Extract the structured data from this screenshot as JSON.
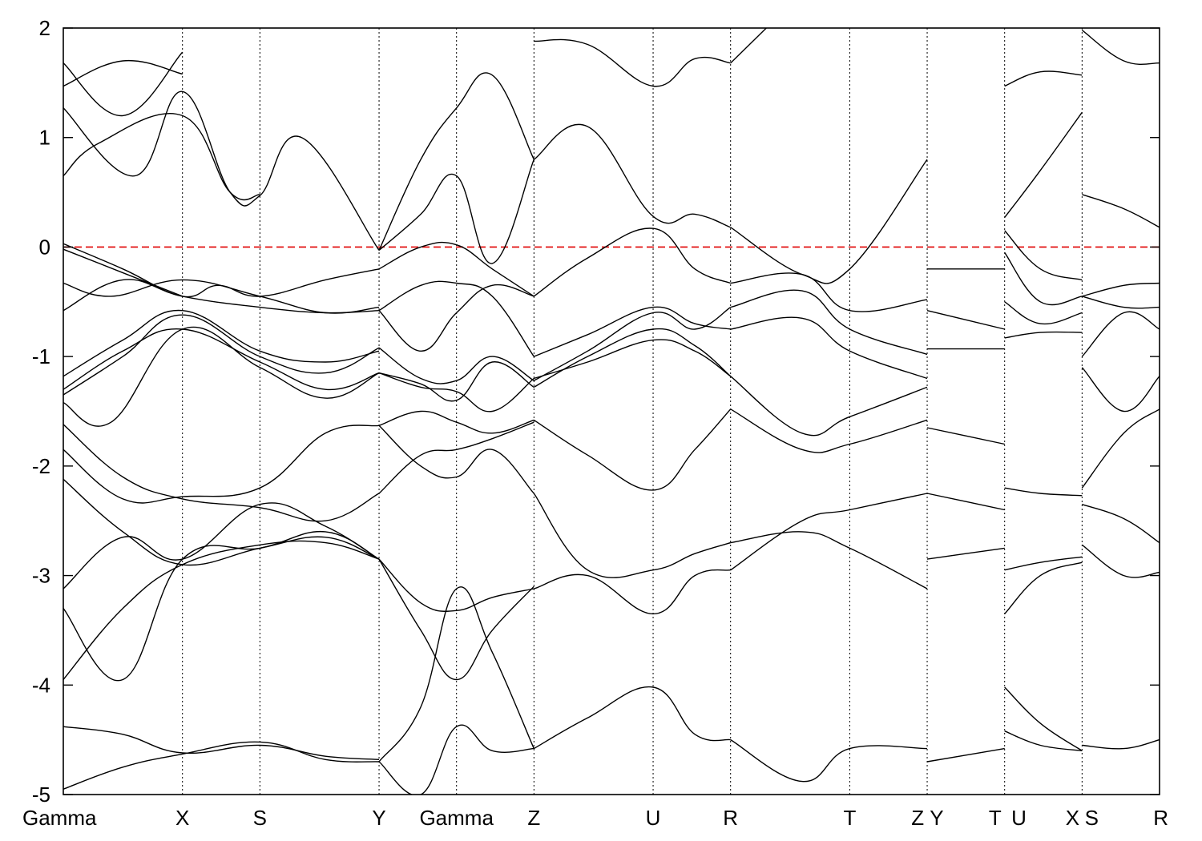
{
  "chart_data": {
    "type": "line",
    "title": "",
    "xlabel": "",
    "ylabel": "",
    "ylim": [
      -5,
      2
    ],
    "yticks": [
      -5,
      -4,
      -3,
      -2,
      -1,
      0,
      1,
      2
    ],
    "grid": false,
    "legend": "none",
    "fermi_level": 0,
    "colors": {
      "bands": "#000000",
      "fermi": "#e00000",
      "kpath_lines": "#000000"
    },
    "kpoints": [
      {
        "label": "Gamma",
        "x": 0.0
      },
      {
        "label": "X",
        "x": 1.0
      },
      {
        "label": "S",
        "x": 1.65
      },
      {
        "label": "Y",
        "x": 2.65
      },
      {
        "label": "Gamma",
        "x": 3.3
      },
      {
        "label": "Z",
        "x": 3.95
      },
      {
        "label": "U",
        "x": 4.95
      },
      {
        "label": "R",
        "x": 5.6
      },
      {
        "label": "T",
        "x": 6.6
      },
      {
        "label": "Z",
        "x": 7.25
      },
      {
        "label": "Y",
        "x": 7.25
      },
      {
        "label": "T",
        "x": 7.9
      },
      {
        "label": "U",
        "x": 7.9
      },
      {
        "label": "X",
        "x": 8.55
      },
      {
        "label": "S",
        "x": 8.55
      },
      {
        "label": "R",
        "x": 9.2
      }
    ],
    "tick_labels": [
      {
        "label": "Gamma",
        "x": 0.0
      },
      {
        "label": "X",
        "x": 1.0
      },
      {
        "label": "S",
        "x": 1.65
      },
      {
        "label": "Y",
        "x": 2.65
      },
      {
        "label": "Gamma",
        "x": 3.3
      },
      {
        "label": "Z",
        "x": 3.95
      },
      {
        "label": "U",
        "x": 4.95
      },
      {
        "label": "R",
        "x": 5.6
      },
      {
        "label": "T",
        "x": 6.6
      },
      {
        "label": "Z",
        "x": 7.17
      },
      {
        "label": "Y",
        "x": 7.33
      },
      {
        "label": "T",
        "x": 7.82
      },
      {
        "label": "U",
        "x": 8.02
      },
      {
        "label": "X",
        "x": 8.47
      },
      {
        "label": "S",
        "x": 8.63
      },
      {
        "label": "R",
        "x": 9.2
      }
    ],
    "vertical_lines": [
      1.0,
      1.65,
      2.65,
      3.3,
      3.95,
      4.95,
      5.6,
      6.6,
      7.25,
      7.9,
      8.55
    ],
    "xlim": [
      0,
      9.2
    ],
    "series": [
      {
        "x": [
          0,
          1.0
        ],
        "y": [
          -0.02,
          -0.45
        ]
      },
      {
        "x": [
          0,
          0.5,
          1.0,
          1.3,
          1.65,
          2.2,
          2.65
        ],
        "y": [
          0.03,
          -0.2,
          -0.45,
          -0.35,
          -0.45,
          -0.3,
          -0.2
        ]
      },
      {
        "x": [
          2.65,
          3.0,
          3.3,
          3.6,
          3.95
        ],
        "y": [
          -0.2,
          0.0,
          0.02,
          -0.2,
          -0.45
        ]
      },
      {
        "x": [
          3.95,
          4.4,
          4.95,
          5.3,
          5.6
        ],
        "y": [
          -0.45,
          -0.1,
          0.17,
          -0.2,
          -0.33
        ]
      },
      {
        "x": [
          5.6,
          6.2,
          6.6,
          7.25
        ],
        "y": [
          -0.33,
          -0.25,
          -0.58,
          -0.48
        ]
      },
      {
        "x": [
          0,
          0.4,
          1.0,
          1.65,
          2.2,
          2.65
        ],
        "y": [
          -0.33,
          -0.45,
          -0.3,
          -0.45,
          -0.6,
          -0.55
        ]
      },
      {
        "x": [
          0,
          0.5,
          1.0,
          1.65,
          2.2,
          2.65
        ],
        "y": [
          -0.58,
          -0.3,
          -0.45,
          -0.55,
          -0.6,
          -0.58
        ]
      },
      {
        "x": [
          2.65,
          3.0,
          3.3,
          3.6,
          3.95
        ],
        "y": [
          -0.58,
          -0.95,
          -0.6,
          -0.35,
          -0.45
        ]
      },
      {
        "x": [
          2.65,
          3.0,
          3.3,
          3.6,
          3.95
        ],
        "y": [
          -0.58,
          -0.35,
          -0.33,
          -0.45,
          -1.0
        ]
      },
      {
        "x": [
          0,
          0.5,
          1.0,
          1.65,
          2.2,
          2.65
        ],
        "y": [
          -1.18,
          -0.85,
          -0.58,
          -0.95,
          -1.05,
          -0.95
        ]
      },
      {
        "x": [
          0,
          0.5,
          1.0,
          1.65,
          2.2,
          2.65
        ],
        "y": [
          -1.3,
          -0.95,
          -0.75,
          -1.05,
          -1.3,
          -1.15
        ]
      },
      {
        "x": [
          0,
          0.4,
          1.0,
          1.65,
          2.2,
          2.65
        ],
        "y": [
          -1.42,
          -1.6,
          -0.75,
          -1.1,
          -1.38,
          -1.15
        ]
      },
      {
        "x": [
          0,
          0.5,
          1.0,
          1.65,
          2.2,
          2.65
        ],
        "y": [
          -1.35,
          -1.0,
          -0.62,
          -1.0,
          -1.15,
          -0.92
        ]
      },
      {
        "x": [
          2.65,
          3.0,
          3.3,
          3.6,
          3.95
        ],
        "y": [
          -0.92,
          -1.2,
          -1.22,
          -1.0,
          -1.22
        ]
      },
      {
        "x": [
          2.65,
          3.0,
          3.3,
          3.6,
          3.95
        ],
        "y": [
          -1.15,
          -1.28,
          -1.32,
          -1.5,
          -1.2
        ]
      },
      {
        "x": [
          2.65,
          3.0,
          3.3,
          3.6,
          3.95
        ],
        "y": [
          -1.15,
          -1.25,
          -1.4,
          -1.05,
          -1.28
        ]
      },
      {
        "x": [
          3.95,
          4.4,
          4.95,
          5.3,
          5.6
        ],
        "y": [
          -1.0,
          -0.8,
          -0.55,
          -0.7,
          -0.75
        ]
      },
      {
        "x": [
          3.95,
          4.4,
          4.95,
          5.3,
          5.6
        ],
        "y": [
          -1.22,
          -0.95,
          -0.6,
          -0.75,
          -0.55
        ]
      },
      {
        "x": [
          3.95,
          4.4,
          4.95,
          5.3,
          5.6
        ],
        "y": [
          -1.28,
          -1.0,
          -0.75,
          -0.9,
          -1.18
        ]
      },
      {
        "x": [
          3.95,
          4.4,
          4.95,
          5.3,
          5.6
        ],
        "y": [
          -1.2,
          -1.05,
          -0.85,
          -0.95,
          -1.18
        ]
      },
      {
        "x": [
          5.6,
          6.2,
          6.6,
          7.25
        ],
        "y": [
          -0.55,
          -0.4,
          -0.75,
          -0.98
        ]
      },
      {
        "x": [
          5.6,
          6.2,
          6.6,
          7.25
        ],
        "y": [
          -0.75,
          -0.65,
          -0.95,
          -1.2
        ]
      },
      {
        "x": [
          5.6,
          6.2,
          6.6,
          7.25
        ],
        "y": [
          -1.18,
          -1.7,
          -1.55,
          -1.28
        ]
      },
      {
        "x": [
          0,
          0.5,
          1.0,
          1.65,
          2.2,
          2.65
        ],
        "y": [
          -1.85,
          -2.3,
          -2.28,
          -2.2,
          -1.7,
          -1.63
        ]
      },
      {
        "x": [
          0,
          0.5,
          1.0,
          1.65,
          2.2,
          2.65
        ],
        "y": [
          -1.62,
          -2.1,
          -2.3,
          -2.38,
          -2.5,
          -2.25
        ]
      },
      {
        "x": [
          2.65,
          3.0,
          3.3,
          3.6,
          3.95
        ],
        "y": [
          -1.63,
          -2.0,
          -2.1,
          -1.85,
          -2.25
        ]
      },
      {
        "x": [
          2.65,
          3.0,
          3.3,
          3.6,
          3.95
        ],
        "y": [
          -2.25,
          -1.9,
          -1.85,
          -1.75,
          -1.6
        ]
      },
      {
        "x": [
          2.65,
          3.0,
          3.3,
          3.6,
          3.95
        ],
        "y": [
          -1.63,
          -1.5,
          -1.6,
          -1.7,
          -1.58
        ]
      },
      {
        "x": [
          3.95,
          4.4,
          4.95,
          5.3,
          5.6
        ],
        "y": [
          -1.58,
          -1.9,
          -2.22,
          -1.85,
          -1.48
        ]
      },
      {
        "x": [
          3.95,
          4.4,
          4.95,
          5.3,
          5.6
        ],
        "y": [
          -2.25,
          -2.95,
          -2.95,
          -2.8,
          -2.7
        ]
      },
      {
        "x": [
          5.6,
          6.2,
          6.6,
          7.25
        ],
        "y": [
          -1.48,
          -1.85,
          -1.8,
          -1.58
        ]
      },
      {
        "x": [
          0,
          0.5,
          1.0,
          1.65,
          2.2,
          2.65
        ],
        "y": [
          -2.12,
          -2.6,
          -2.9,
          -2.75,
          -2.65,
          -2.85
        ]
      },
      {
        "x": [
          0,
          0.5,
          1.0,
          1.65,
          2.2,
          2.65
        ],
        "y": [
          -3.12,
          -2.65,
          -2.85,
          -2.35,
          -2.55,
          -2.85
        ]
      },
      {
        "x": [
          2.65,
          3.0,
          3.3,
          3.6,
          3.95
        ],
        "y": [
          -2.85,
          -3.25,
          -3.32,
          -3.2,
          -3.12
        ]
      },
      {
        "x": [
          2.65,
          3.0,
          3.3,
          3.6,
          3.95
        ],
        "y": [
          -2.85,
          -3.5,
          -3.95,
          -3.5,
          -3.1
        ]
      },
      {
        "x": [
          3.95,
          4.4,
          4.95,
          5.3,
          5.6
        ],
        "y": [
          -3.12,
          -3.0,
          -3.35,
          -3.0,
          -2.95
        ]
      },
      {
        "x": [
          5.6,
          6.2,
          6.6,
          7.25
        ],
        "y": [
          -2.95,
          -2.5,
          -2.4,
          -2.25
        ]
      },
      {
        "x": [
          5.6,
          6.2,
          6.6,
          7.25
        ],
        "y": [
          -2.7,
          -2.6,
          -2.75,
          -3.12
        ]
      },
      {
        "x": [
          0,
          0.5,
          1.0,
          1.65,
          2.2,
          2.65
        ],
        "y": [
          -3.3,
          -3.95,
          -2.85,
          -2.75,
          -2.6,
          -2.85
        ]
      },
      {
        "x": [
          0,
          0.5,
          1.0,
          1.65,
          2.2,
          2.65
        ],
        "y": [
          -3.95,
          -3.3,
          -2.9,
          -2.72,
          -2.7,
          -2.85
        ]
      },
      {
        "x": [
          0,
          0.5,
          1.0,
          1.65,
          2.2,
          2.65
        ],
        "y": [
          -4.38,
          -4.45,
          -4.62,
          -4.55,
          -4.65,
          -4.68
        ]
      },
      {
        "x": [
          0,
          0.5,
          1.0,
          1.65,
          2.2,
          2.65
        ],
        "y": [
          -4.95,
          -4.75,
          -4.63,
          -4.52,
          -4.68,
          -4.7
        ]
      },
      {
        "x": [
          2.65,
          3.0,
          3.3,
          3.6,
          3.95
        ],
        "y": [
          -4.7,
          -4.2,
          -3.12,
          -3.7,
          -4.58
        ]
      },
      {
        "x": [
          2.65,
          3.0,
          3.3,
          3.6,
          3.95
        ],
        "y": [
          -4.7,
          -5.0,
          -4.38,
          -4.6,
          -4.58
        ]
      },
      {
        "x": [
          3.95,
          4.4,
          4.95,
          5.3,
          5.6
        ],
        "y": [
          -4.58,
          -4.3,
          -4.02,
          -4.45,
          -4.5
        ]
      },
      {
        "x": [
          5.6,
          6.2,
          6.6,
          7.25
        ],
        "y": [
          -4.5,
          -4.88,
          -4.58,
          -4.58
        ]
      },
      {
        "x": [
          0,
          0.3,
          1.0,
          1.4,
          1.65
        ],
        "y": [
          0.65,
          0.95,
          1.2,
          0.5,
          0.48
        ]
      },
      {
        "x": [
          0,
          0.6,
          1.0,
          1.4,
          1.65,
          2.0,
          2.65
        ],
        "y": [
          1.27,
          0.65,
          1.42,
          0.5,
          0.47,
          1.0,
          -0.03
        ]
      },
      {
        "x": [
          0,
          0.5,
          1.0
        ],
        "y": [
          1.47,
          1.7,
          1.58
        ]
      },
      {
        "x": [
          0,
          0.5,
          1.0
        ],
        "y": [
          1.68,
          1.2,
          1.78
        ]
      },
      {
        "x": [
          2.65,
          3.0,
          3.3,
          3.6,
          3.95
        ],
        "y": [
          -0.03,
          0.8,
          1.27,
          1.57,
          0.8
        ]
      },
      {
        "x": [
          2.65,
          3.0,
          3.3,
          3.6,
          3.95
        ],
        "y": [
          -0.03,
          0.3,
          0.65,
          -0.15,
          0.8
        ]
      },
      {
        "x": [
          3.95,
          4.4,
          4.95,
          5.3,
          5.6
        ],
        "y": [
          0.8,
          1.1,
          0.28,
          0.3,
          0.18
        ]
      },
      {
        "x": [
          3.95,
          4.4,
          4.95,
          5.3,
          5.6
        ],
        "y": [
          1.88,
          1.85,
          1.47,
          1.72,
          1.68
        ]
      },
      {
        "x": [
          5.6,
          6.2,
          6.6,
          7.25
        ],
        "y": [
          0.18,
          -0.25,
          -0.2,
          0.8
        ]
      },
      {
        "x": [
          5.6,
          5.9
        ],
        "y": [
          1.68,
          2.0
        ]
      },
      {
        "x": [
          7.25,
          7.9
        ],
        "y": [
          -0.2,
          -0.2
        ]
      },
      {
        "x": [
          7.25,
          7.9
        ],
        "y": [
          -0.58,
          -0.75
        ]
      },
      {
        "x": [
          7.25,
          7.9
        ],
        "y": [
          -0.93,
          -0.93
        ]
      },
      {
        "x": [
          7.25,
          7.9
        ],
        "y": [
          -1.65,
          -1.8
        ]
      },
      {
        "x": [
          7.25,
          7.9
        ],
        "y": [
          -2.25,
          -2.4
        ]
      },
      {
        "x": [
          7.25,
          7.9
        ],
        "y": [
          -2.85,
          -2.75
        ]
      },
      {
        "x": [
          7.25,
          7.9
        ],
        "y": [
          -4.7,
          -4.58
        ]
      },
      {
        "x": [
          7.9,
          8.2,
          8.55
        ],
        "y": [
          0.27,
          0.7,
          1.23
        ]
      },
      {
        "x": [
          7.9,
          8.2,
          8.55
        ],
        "y": [
          1.47,
          1.6,
          1.57
        ]
      },
      {
        "x": [
          7.9,
          8.2,
          8.55
        ],
        "y": [
          0.15,
          -0.2,
          -0.3
        ]
      },
      {
        "x": [
          7.9,
          8.2,
          8.55
        ],
        "y": [
          -0.05,
          -0.5,
          -0.45
        ]
      },
      {
        "x": [
          7.9,
          8.2,
          8.55
        ],
        "y": [
          -0.5,
          -0.7,
          -0.6
        ]
      },
      {
        "x": [
          7.9,
          8.2,
          8.55
        ],
        "y": [
          -0.83,
          -0.78,
          -0.78
        ]
      },
      {
        "x": [
          7.9,
          8.2,
          8.55
        ],
        "y": [
          -2.2,
          -2.25,
          -2.27
        ]
      },
      {
        "x": [
          7.9,
          8.2,
          8.55
        ],
        "y": [
          -2.95,
          -2.88,
          -2.83
        ]
      },
      {
        "x": [
          7.9,
          8.2,
          8.55
        ],
        "y": [
          -3.35,
          -3.0,
          -2.88
        ]
      },
      {
        "x": [
          7.9,
          8.2,
          8.55
        ],
        "y": [
          -4.02,
          -4.35,
          -4.6
        ]
      },
      {
        "x": [
          7.9,
          8.2,
          8.55
        ],
        "y": [
          -4.42,
          -4.55,
          -4.6
        ]
      },
      {
        "x": [
          8.55,
          8.9,
          9.2
        ],
        "y": [
          0.48,
          0.35,
          0.18
        ]
      },
      {
        "x": [
          8.55,
          8.9,
          9.2
        ],
        "y": [
          1.98,
          1.7,
          1.68
        ]
      },
      {
        "x": [
          8.55,
          8.9,
          9.2
        ],
        "y": [
          -0.45,
          -0.35,
          -0.33
        ]
      },
      {
        "x": [
          8.55,
          8.9,
          9.2
        ],
        "y": [
          -0.45,
          -0.55,
          -0.55
        ]
      },
      {
        "x": [
          8.55,
          8.9,
          9.2
        ],
        "y": [
          -1.0,
          -0.6,
          -0.75
        ]
      },
      {
        "x": [
          8.55,
          8.9,
          9.2
        ],
        "y": [
          -1.1,
          -1.5,
          -1.18
        ]
      },
      {
        "x": [
          8.55,
          8.9,
          9.2
        ],
        "y": [
          -2.2,
          -1.7,
          -1.48
        ]
      },
      {
        "x": [
          8.55,
          8.9,
          9.2
        ],
        "y": [
          -2.35,
          -2.48,
          -2.7
        ]
      },
      {
        "x": [
          8.55,
          8.9,
          9.2
        ],
        "y": [
          -2.72,
          -3.0,
          -2.97
        ]
      },
      {
        "x": [
          8.55,
          8.9,
          9.2
        ],
        "y": [
          -4.55,
          -4.58,
          -4.5
        ]
      }
    ]
  }
}
